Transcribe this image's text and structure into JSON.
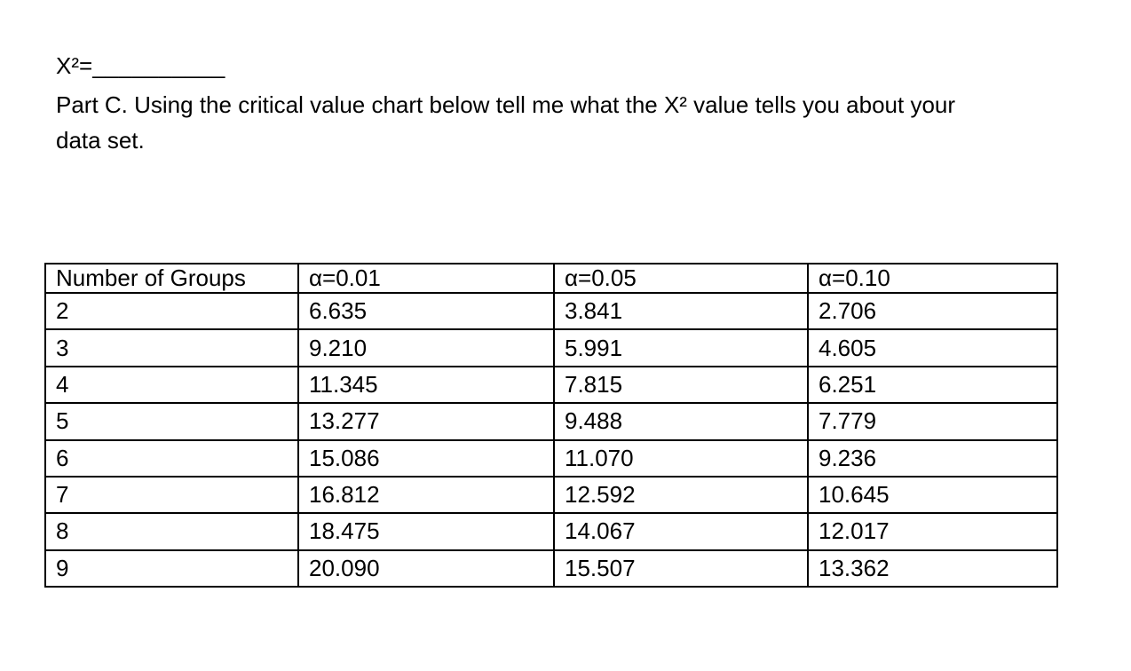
{
  "page": {
    "background": "#ffffff",
    "text_color": "#000000",
    "table_border_color": "#000000"
  },
  "equation": {
    "label": "X²=",
    "blank": "__________"
  },
  "part_c": {
    "lines": [
      "Part C. Using the critical value chart below tell me what the X² value tells you about your",
      "data set."
    ]
  },
  "table": {
    "columns": [
      "Number of Groups",
      "α=0.01",
      "α=0.05",
      "α=0.10"
    ],
    "rows": [
      [
        "2",
        "6.635",
        "3.841",
        "2.706"
      ],
      [
        "3",
        "9.210",
        "5.991",
        "4.605"
      ],
      [
        "4",
        "11.345",
        "7.815",
        "6.251"
      ],
      [
        "5",
        "13.277",
        "9.488",
        "7.779"
      ],
      [
        "6",
        "15.086",
        "11.070",
        "9.236"
      ],
      [
        "7",
        "16.812",
        "12.592",
        "10.645"
      ],
      [
        "8",
        "18.475",
        "14.067",
        "12.017"
      ],
      [
        "9",
        "20.090",
        "15.507",
        "13.362"
      ]
    ]
  }
}
